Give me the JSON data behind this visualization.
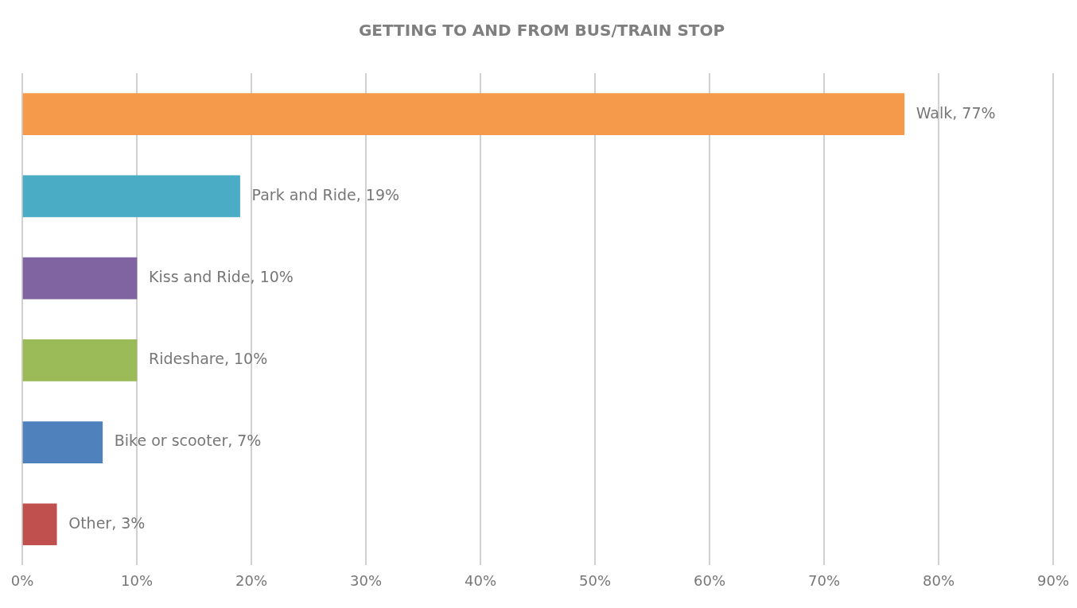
{
  "chart_data": {
    "type": "bar",
    "orientation": "horizontal",
    "title": "GETTING TO AND FROM BUS/TRAIN STOP",
    "categories": [
      null,
      null,
      null,
      null,
      null,
      null
    ],
    "values": [
      77,
      19,
      10,
      10,
      7,
      3
    ],
    "colors": [
      "#f59a4a",
      "#4bacc6",
      "#8064a2",
      "#9bbb59",
      "#4f81bd",
      "#c0504d"
    ],
    "value_labels": [
      "Walk, 77%",
      "Park and Ride, 19%",
      "Kiss and Ride, 10%",
      "Rideshare, 10%",
      "Bike or scooter, 7%",
      "Other, 3%"
    ],
    "xlim": [
      0,
      90
    ],
    "xticks": [
      {
        "value": 0,
        "label": "0%"
      },
      {
        "value": 10,
        "label": "10%"
      },
      {
        "value": 20,
        "label": "20%"
      },
      {
        "value": 30,
        "label": "30%"
      },
      {
        "value": 40,
        "label": "40%"
      },
      {
        "value": 50,
        "label": "50%"
      },
      {
        "value": 60,
        "label": "60%"
      },
      {
        "value": 70,
        "label": "70%"
      },
      {
        "value": 80,
        "label": "80%"
      },
      {
        "value": 90,
        "label": "90%"
      }
    ],
    "grid": "x",
    "tick_labels": "x",
    "legend": false
  }
}
